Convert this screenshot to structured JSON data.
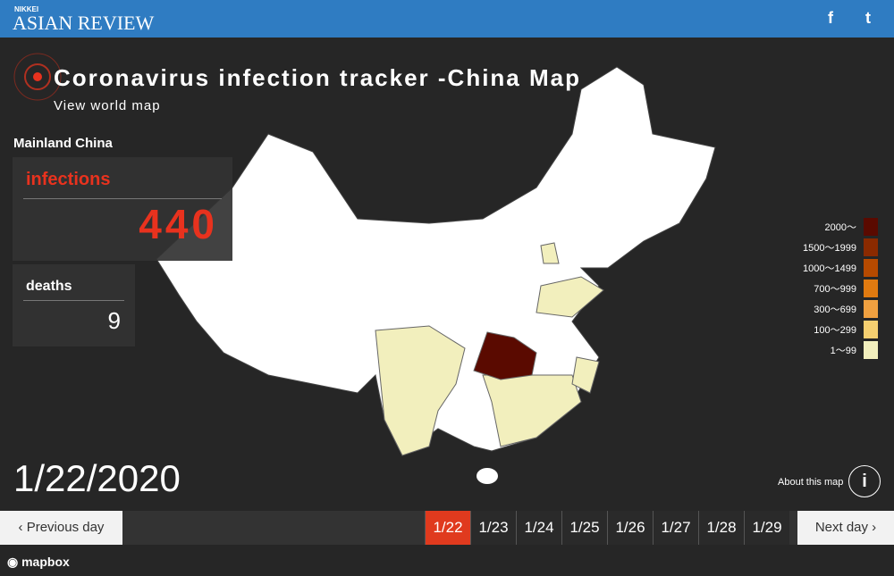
{
  "header": {
    "brand_small": "NIKKEI",
    "brand": "ASIAN REVIEW",
    "social": [
      "f",
      "t"
    ]
  },
  "title": "Coronavirus infection tracker -China Map",
  "world_link": "View world map",
  "region": "Mainland China",
  "infections": {
    "label": "infections",
    "value": 440
  },
  "deaths": {
    "label": "deaths",
    "value": 9
  },
  "legend": [
    {
      "label": "2000〜",
      "color": "#5a0a00"
    },
    {
      "label": "1500〜1999",
      "color": "#8a2a00"
    },
    {
      "label": "1000〜1499",
      "color": "#b64a00"
    },
    {
      "label": "700〜999",
      "color": "#e07a10"
    },
    {
      "label": "300〜699",
      "color": "#f0a040"
    },
    {
      "label": "100〜299",
      "color": "#f5cf70"
    },
    {
      "label": "1〜99",
      "color": "#f2efbd"
    }
  ],
  "date": "1/22/2020",
  "about": "About this map",
  "info_icon": "i",
  "timeline": {
    "previous": "Previous day",
    "next": "Next day",
    "dates": [
      "1/22",
      "1/23",
      "1/24",
      "1/25",
      "1/26",
      "1/27",
      "1/28",
      "1/29"
    ],
    "active": 0
  },
  "attribution": "mapbox"
}
